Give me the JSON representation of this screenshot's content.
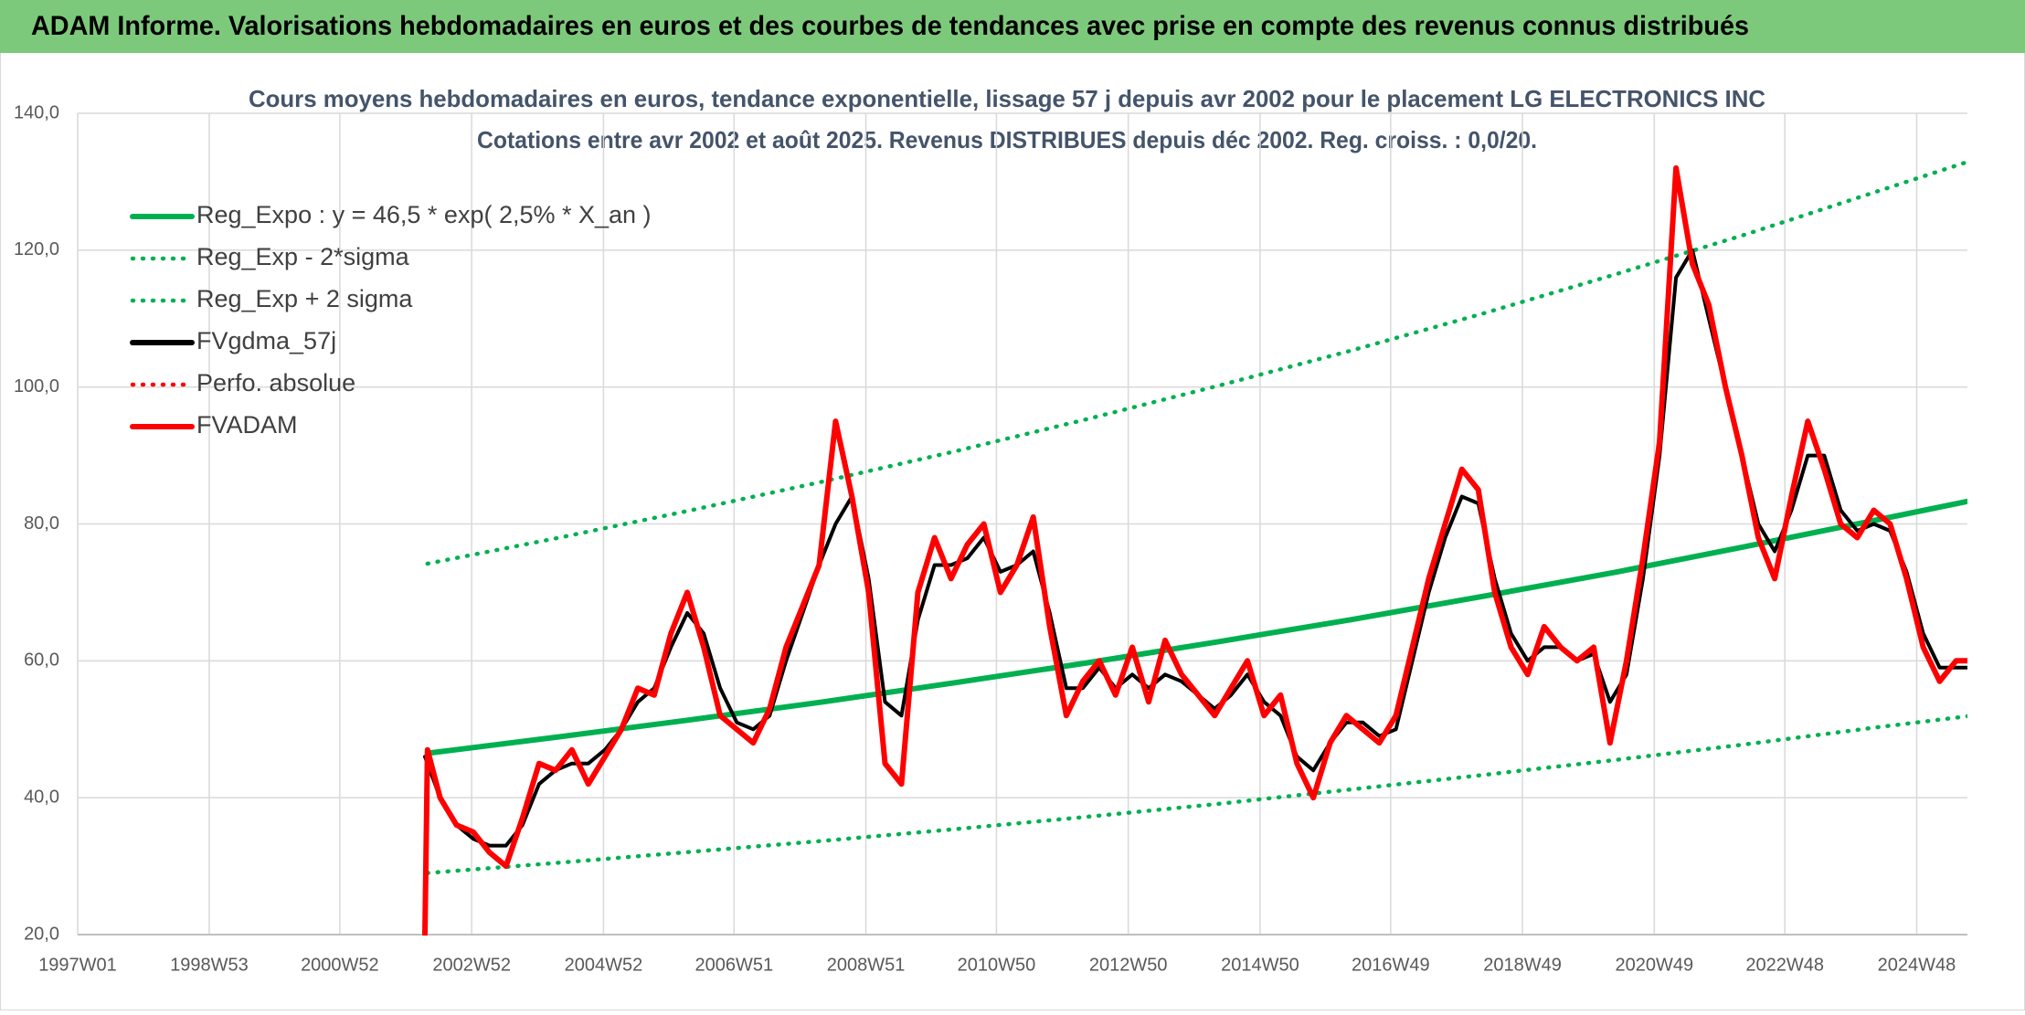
{
  "header": {
    "title": "ADAM Informe. Valorisations hebdomadaires en euros et des courbes de tendances avec prise en compte des revenus connus distribués"
  },
  "chart_data": {
    "type": "line",
    "title": "Cours moyens hebdomadaires en euros, tendance exponentielle, lissage 57 j depuis avr 2002 pour le placement LG ELECTRONICS INC",
    "subtitle": "Cotations entre avr 2002 et août 2025. Revenus DISTRIBUES depuis déc 2002. Reg. croiss. : 0,0/20.",
    "grid": true,
    "legend": "upper left",
    "xlim": [
      "1997W01",
      "2025W36"
    ],
    "xticks": [
      "1997W01",
      "1998W53",
      "2000W52",
      "2002W52",
      "2004W52",
      "2006W51",
      "2008W51",
      "2010W50",
      "2012W50",
      "2014W50",
      "2016W49",
      "2018W49",
      "2020W49",
      "2022W48",
      "2024W48"
    ],
    "ylim": [
      20,
      140
    ],
    "yticks": [
      {
        "value": 20,
        "label": "20,0"
      },
      {
        "value": 40,
        "label": "40,0"
      },
      {
        "value": 60,
        "label": "60,0"
      },
      {
        "value": 80,
        "label": "80,0"
      },
      {
        "value": 100,
        "label": "100,0"
      },
      {
        "value": 120,
        "label": "120,0"
      },
      {
        "value": 140,
        "label": "140,0"
      }
    ],
    "x": [
      "2002W15",
      "2002W17",
      "2002W27",
      "2002W40",
      "2003W01",
      "2003W14",
      "2003W27",
      "2003W40",
      "2004W01",
      "2004W14",
      "2004W27",
      "2004W40",
      "2005W01",
      "2005W14",
      "2005W27",
      "2005W40",
      "2006W01",
      "2006W14",
      "2006W27",
      "2006W40",
      "2007W01",
      "2007W14",
      "2007W27",
      "2007W40",
      "2008W01",
      "2008W14",
      "2008W27",
      "2008W40",
      "2009W01",
      "2009W14",
      "2009W27",
      "2009W40",
      "2010W01",
      "2010W14",
      "2010W27",
      "2010W40",
      "2011W01",
      "2011W14",
      "2011W27",
      "2011W40",
      "2012W01",
      "2012W14",
      "2012W27",
      "2012W40",
      "2013W01",
      "2013W14",
      "2013W27",
      "2013W40",
      "2014W01",
      "2014W14",
      "2014W27",
      "2014W40",
      "2015W01",
      "2015W14",
      "2015W27",
      "2015W40",
      "2016W01",
      "2016W14",
      "2016W27",
      "2016W40",
      "2017W01",
      "2017W14",
      "2017W27",
      "2017W40",
      "2018W01",
      "2018W14",
      "2018W27",
      "2018W40",
      "2019W01",
      "2019W14",
      "2019W27",
      "2019W40",
      "2020W01",
      "2020W14",
      "2020W27",
      "2020W40",
      "2021W01",
      "2021W14",
      "2021W27",
      "2021W40",
      "2022W01",
      "2022W14",
      "2022W27",
      "2022W40",
      "2023W01",
      "2023W14",
      "2023W27",
      "2023W40",
      "2024W01",
      "2024W14",
      "2024W27",
      "2024W40",
      "2025W01",
      "2025W14",
      "2025W27",
      "2025W36"
    ],
    "series": [
      {
        "name": "Reg_Expo : y = 46,5 * exp( 2,5% *  X_an )",
        "color": "#00b050",
        "line_style": "solid",
        "x": [
          "2002W17",
          "2004W17",
          "2006W17",
          "2008W17",
          "2010W17",
          "2012W17",
          "2014W17",
          "2016W17",
          "2018W17",
          "2020W17",
          "2022W17",
          "2024W17",
          "2025W36"
        ],
        "values": [
          46.5,
          48.9,
          51.4,
          54.0,
          56.8,
          59.7,
          62.8,
          66.0,
          69.4,
          72.9,
          76.7,
          80.6,
          83.3
        ]
      },
      {
        "name": "Reg_Exp - 2*sigma",
        "color": "#00b050",
        "line_style": "dotted",
        "x": [
          "2002W17",
          "2004W17",
          "2006W17",
          "2008W17",
          "2010W17",
          "2012W17",
          "2014W17",
          "2016W17",
          "2018W17",
          "2020W17",
          "2022W17",
          "2024W17",
          "2025W36"
        ],
        "values": [
          29.0,
          30.5,
          32.1,
          33.7,
          35.4,
          37.2,
          39.1,
          41.2,
          43.3,
          45.5,
          47.8,
          50.3,
          51.9
        ]
      },
      {
        "name": "Reg_Exp + 2 sigma",
        "color": "#00b050",
        "line_style": "dotted",
        "x": [
          "2002W17",
          "2004W17",
          "2006W17",
          "2008W17",
          "2010W17",
          "2012W17",
          "2014W17",
          "2016W17",
          "2018W17",
          "2020W17",
          "2022W17",
          "2024W17",
          "2025W36"
        ],
        "values": [
          74.2,
          78.0,
          82.0,
          86.2,
          90.6,
          95.3,
          100.2,
          105.3,
          110.7,
          116.4,
          122.3,
          128.6,
          132.9
        ]
      },
      {
        "name": "FVgdma_57j",
        "color": "#000000",
        "line_style": "solid",
        "values": [
          46,
          45,
          40,
          36,
          34,
          33,
          33,
          36,
          42,
          44,
          45,
          45,
          47,
          50,
          54,
          56,
          62,
          67,
          64,
          56,
          51,
          50,
          52,
          60,
          67,
          74,
          80,
          84,
          72,
          54,
          52,
          66,
          74,
          74,
          75,
          78,
          73,
          74,
          76,
          67,
          56,
          56,
          59,
          56,
          58,
          56,
          58,
          57,
          55,
          53,
          55,
          58,
          54,
          52,
          46,
          44,
          48,
          51,
          51,
          49,
          50,
          60,
          70,
          78,
          84,
          83,
          72,
          64,
          60,
          62,
          62,
          60,
          61,
          54,
          58,
          72,
          90,
          116,
          120,
          110,
          100,
          90,
          80,
          76,
          82,
          90,
          90,
          82,
          79,
          80,
          79,
          73,
          64,
          59,
          59,
          59
        ]
      },
      {
        "name": "Perfo. absolue",
        "color": "#ff0000",
        "line_style": "dotted",
        "x": [],
        "values": []
      },
      {
        "name": "FVADAM",
        "color": "#ff0000",
        "line_style": "solid",
        "values": [
          20,
          47,
          40,
          36,
          35,
          32,
          30,
          37,
          45,
          44,
          47,
          42,
          46,
          50,
          56,
          55,
          64,
          70,
          62,
          52,
          50,
          48,
          53,
          62,
          68,
          74,
          95,
          84,
          70,
          45,
          42,
          70,
          78,
          72,
          77,
          80,
          70,
          74,
          81,
          65,
          52,
          57,
          60,
          55,
          62,
          54,
          63,
          58,
          55,
          52,
          56,
          60,
          52,
          55,
          45,
          40,
          48,
          52,
          50,
          48,
          52,
          62,
          72,
          80,
          88,
          85,
          70,
          62,
          58,
          65,
          62,
          60,
          62,
          48,
          60,
          75,
          92,
          132,
          118,
          112,
          100,
          90,
          78,
          72,
          84,
          95,
          88,
          80,
          78,
          82,
          80,
          72,
          62,
          57,
          60,
          60
        ]
      }
    ]
  }
}
